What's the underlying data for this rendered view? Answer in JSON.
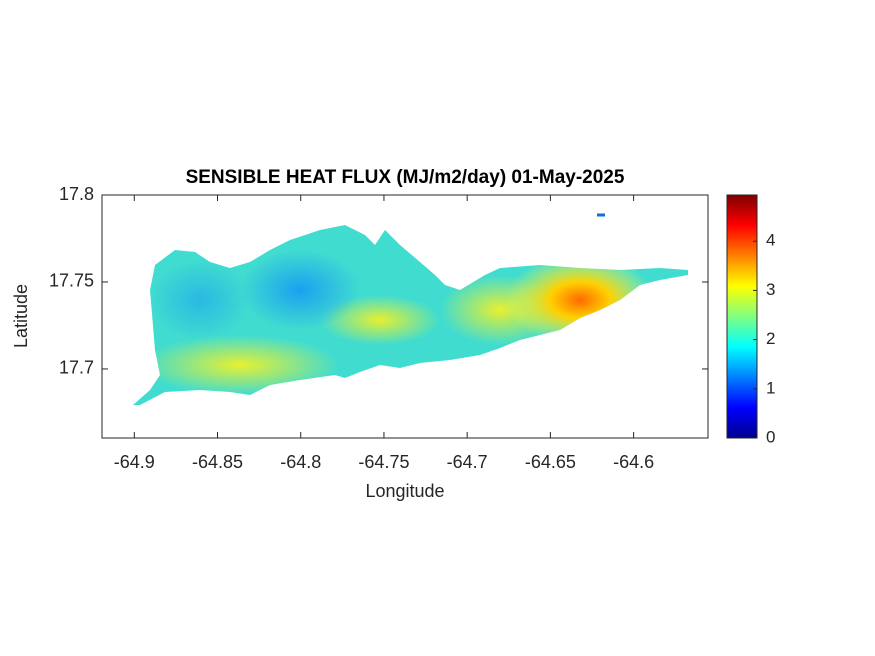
{
  "chart_data": {
    "type": "heatmap",
    "title": "SENSIBLE HEAT FLUX (MJ/m2/day) 01-May-2025",
    "x_label": "Longitude",
    "y_label": "Latitude",
    "xlim": [
      -64.9194,
      -64.5553
    ],
    "xticks": [
      -64.9,
      -64.85,
      -64.8,
      -64.75,
      -64.7,
      -64.65,
      -64.6
    ],
    "ylim": [
      17.6603,
      17.8
    ],
    "yticks": [
      17.7,
      17.75,
      17.8
    ],
    "colorbar": {
      "lim": [
        0,
        4.94
      ],
      "ticks": [
        0,
        1,
        2,
        3,
        4
      ],
      "colormap": "jet"
    }
  }
}
